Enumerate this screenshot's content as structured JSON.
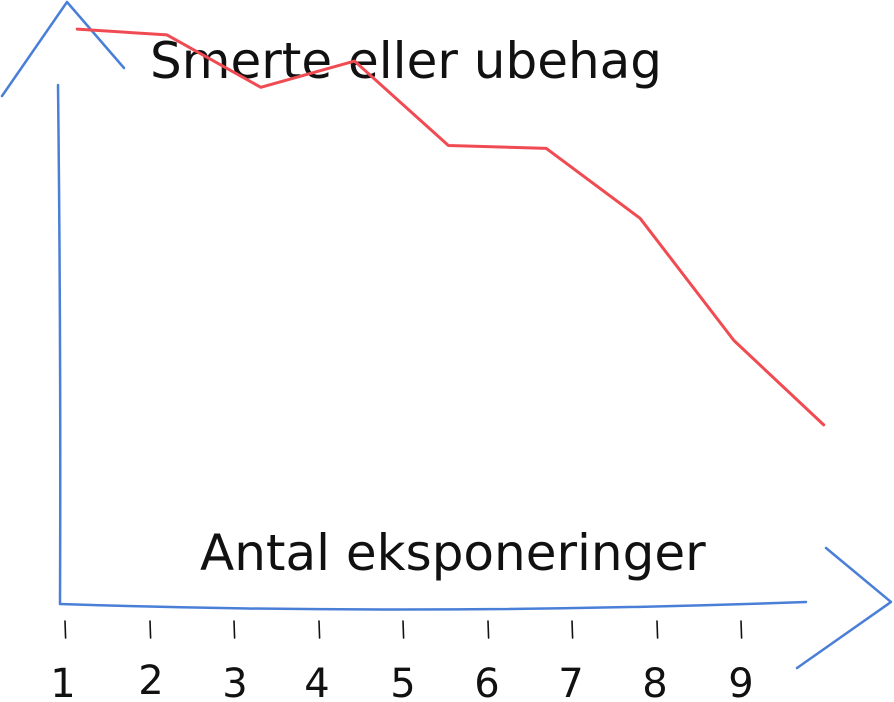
{
  "chart_data": {
    "type": "line",
    "title": "",
    "ylabel": "Smerte eller ubehag",
    "xlabel": "Antal eksponeringer",
    "x_tick_labels": [
      "1",
      "2",
      "3",
      "4",
      "5",
      "6",
      "7",
      "8",
      "9"
    ],
    "x": [
      1.15,
      2.25,
      3.4,
      4.55,
      5.7,
      6.9,
      8.05,
      9.2,
      10.3
    ],
    "xlim": [
      1,
      10.5
    ],
    "ylim": [
      0,
      10
    ],
    "grid": false,
    "series": [
      {
        "values": [
          9.5,
          9.4,
          8.5,
          8.95,
          7.5,
          7.45,
          6.25,
          4.15,
          2.7
        ]
      }
    ],
    "colors": {
      "axis": "#4a7fd8",
      "series": "#f04b52",
      "text": "#111111"
    }
  }
}
